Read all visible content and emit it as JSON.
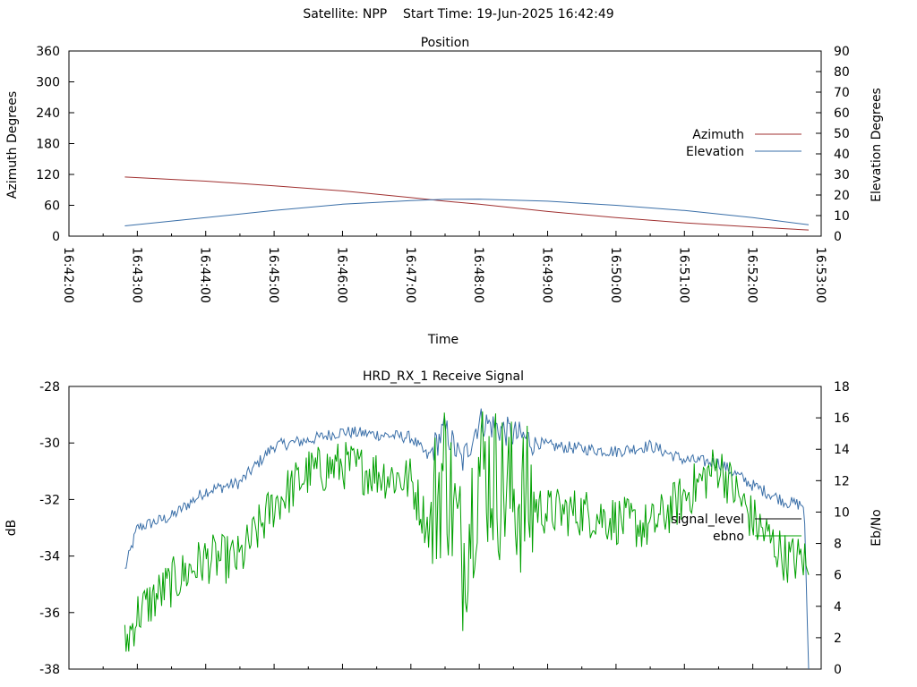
{
  "header": {
    "satellite": "Satellite: NPP",
    "start_time": "Start Time: 19-Jun-2025 16:42:49"
  },
  "colors": {
    "azimuth": "#a03030",
    "elevation": "#3a6fa8",
    "signal_level": "#3a6fa8",
    "ebno": "#00a000",
    "legend_signal": "#000000",
    "legend_ebno": "#00a000"
  },
  "chart_data": [
    {
      "type": "line",
      "title": "Position",
      "xlabel": "Time",
      "ylabel": "Azimuth Degrees",
      "y2label": "Elevation Degrees",
      "xlim_minutes": [
        0,
        11
      ],
      "x_tick_labels": [
        "16:42:00",
        "16:43:00",
        "16:44:00",
        "16:45:00",
        "16:46:00",
        "16:47:00",
        "16:48:00",
        "16:49:00",
        "16:50:00",
        "16:51:00",
        "16:52:00",
        "16:53:00"
      ],
      "ylim": [
        0,
        360
      ],
      "y_ticks": [
        0,
        60,
        120,
        180,
        240,
        300,
        360
      ],
      "y2lim": [
        0,
        90
      ],
      "y2_ticks": [
        0,
        10,
        20,
        30,
        40,
        50,
        60,
        70,
        80,
        90
      ],
      "legend_position": "right",
      "series": [
        {
          "name": "Azimuth",
          "axis": "left",
          "x": [
            "16:42:49",
            "16:44:00",
            "16:45:00",
            "16:46:00",
            "16:47:00",
            "16:47:30",
            "16:48:00",
            "16:49:00",
            "16:50:00",
            "16:51:00",
            "16:52:00",
            "16:52:49"
          ],
          "y": [
            115,
            107,
            98,
            88,
            75,
            68,
            62,
            48,
            36,
            26,
            18,
            12
          ]
        },
        {
          "name": "Elevation",
          "axis": "right",
          "x": [
            "16:42:49",
            "16:44:00",
            "16:45:00",
            "16:46:00",
            "16:47:00",
            "16:47:30",
            "16:48:00",
            "16:49:00",
            "16:50:00",
            "16:51:00",
            "16:52:00",
            "16:52:49"
          ],
          "y": [
            5,
            9,
            12.5,
            15.5,
            17.3,
            17.9,
            18,
            17,
            15,
            12.5,
            9,
            5.5
          ]
        }
      ]
    },
    {
      "type": "line",
      "title": "HRD_RX_1 Receive Signal",
      "ylabel": "dB",
      "y2label": "Eb/No",
      "xlim_minutes": [
        0,
        11
      ],
      "ylim": [
        -38,
        -28
      ],
      "y_ticks": [
        -38,
        -36,
        -34,
        -32,
        -30,
        -28
      ],
      "y2lim": [
        0,
        18
      ],
      "y2_ticks": [
        0,
        2,
        4,
        6,
        8,
        10,
        12,
        14,
        16,
        18
      ],
      "legend_position": "right",
      "series": [
        {
          "name": "signal_level",
          "axis": "left",
          "x": [
            "16:42:49",
            "16:43:00",
            "16:43:30",
            "16:44:00",
            "16:44:30",
            "16:45:00",
            "16:45:30",
            "16:46:00",
            "16:46:30",
            "16:47:00",
            "16:47:15",
            "16:47:30",
            "16:47:45",
            "16:48:00",
            "16:48:30",
            "16:49:00",
            "16:49:30",
            "16:50:00",
            "16:50:30",
            "16:51:00",
            "16:51:30",
            "16:52:00",
            "16:52:30",
            "16:52:45",
            "16:52:49"
          ],
          "y": [
            -34.5,
            -33.0,
            -32.6,
            -31.7,
            -31.4,
            -30.1,
            -29.9,
            -29.6,
            -29.7,
            -29.8,
            -30.5,
            -29.5,
            -30.7,
            -29.2,
            -29.7,
            -30.1,
            -30.2,
            -30.3,
            -30.1,
            -30.6,
            -30.7,
            -31.5,
            -32.1,
            -32.2,
            -38.0
          ]
        },
        {
          "name": "ebno",
          "axis": "right",
          "x": [
            "16:42:49",
            "16:43:00",
            "16:43:30",
            "16:44:00",
            "16:44:30",
            "16:45:00",
            "16:45:30",
            "16:46:00",
            "16:46:30",
            "16:47:00",
            "16:47:15",
            "16:47:30",
            "16:47:45",
            "16:48:00",
            "16:48:30",
            "16:49:00",
            "16:49:30",
            "16:50:00",
            "16:50:30",
            "16:51:00",
            "16:51:30",
            "16:52:00",
            "16:52:30",
            "16:52:45",
            "16:52:49"
          ],
          "y": [
            1.5,
            3.5,
            5.5,
            7.0,
            7.0,
            10.5,
            12.5,
            13.0,
            12.5,
            12.0,
            9.0,
            13.0,
            7.0,
            13.0,
            11.0,
            10.0,
            10.0,
            9.5,
            9.0,
            11.0,
            13.0,
            9.5,
            7.0,
            7.0,
            6.0
          ]
        }
      ]
    }
  ]
}
